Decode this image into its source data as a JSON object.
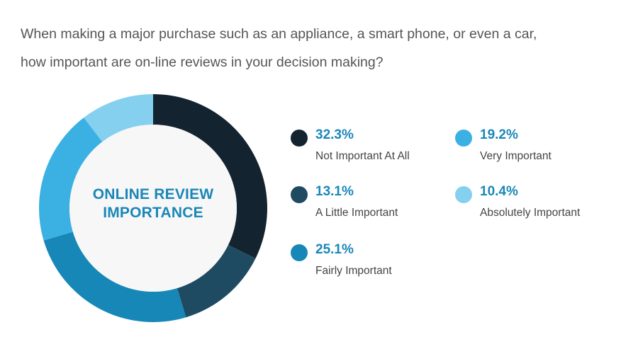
{
  "question": {
    "line1": "When making a major purchase such as an appliance, a smart phone, or even a car,",
    "line2": "how important  are on-line reviews in your decision making?"
  },
  "center_label": {
    "line1": "ONLINE REVIEW",
    "line2": "IMPORTANCE"
  },
  "legend": [
    {
      "value": "32.3%",
      "label": "Not Important At All",
      "color": "#13232f"
    },
    {
      "value": "13.1%",
      "label": "A Little Important",
      "color": "#1e4a62"
    },
    {
      "value": "25.1%",
      "label": "Fairly Important",
      "color": "#1787b8"
    },
    {
      "value": "19.2%",
      "label": "Very Important",
      "color": "#3bb1e3"
    },
    {
      "value": "10.4%",
      "label": "Absolutely Important",
      "color": "#85cfef"
    }
  ],
  "chart_data": {
    "type": "pie",
    "donut": true,
    "categories": [
      "Not Important At All",
      "A Little Important",
      "Fairly Important",
      "Very Important",
      "Absolutely Important"
    ],
    "values": [
      32.3,
      13.1,
      25.1,
      19.2,
      10.4
    ],
    "unit": "%",
    "colors": [
      "#13232f",
      "#1e4a62",
      "#1787b8",
      "#3bb1e3",
      "#85cfef"
    ],
    "center_text": "ONLINE REVIEW IMPORTANCE",
    "start_angle": "top",
    "direction": "clockwise",
    "legend_position": "right"
  }
}
